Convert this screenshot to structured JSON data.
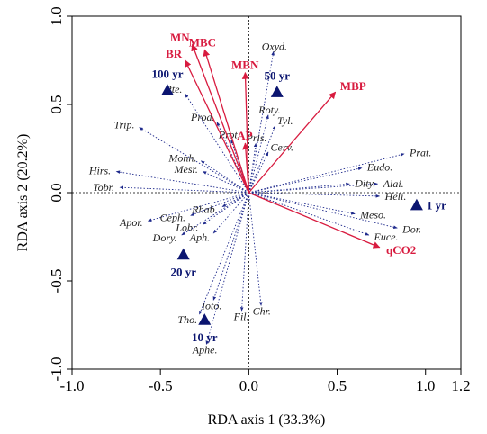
{
  "chart_data": {
    "type": "scatter",
    "xlabel": "RDA axis 1 (33.3%)",
    "ylabel": "RDA axis 2 (20.2%)",
    "xlim": [
      -1.0,
      1.2
    ],
    "ylim": [
      -1.0,
      1.0
    ],
    "xticks": [
      -1.0,
      -0.5,
      0.0,
      0.5,
      1.0,
      1.2
    ],
    "xtick_labels": [
      "-1.0",
      "-0.5",
      "0.0",
      "0.5",
      "1.0",
      "1.2"
    ],
    "yticks": [
      -1.0,
      -0.5,
      0.0,
      0.5,
      1.0
    ],
    "ytick_labels": [
      "-1.0",
      "-0.5",
      "0.0",
      "0.5",
      "1.0"
    ],
    "zero_lines": true,
    "species": [
      {
        "label": "Oxyd.",
        "x": 0.14,
        "y": 0.8
      },
      {
        "label": "Roty.",
        "x": 0.11,
        "y": 0.44
      },
      {
        "label": "Tyl.",
        "x": 0.15,
        "y": 0.38
      },
      {
        "label": "Pte.",
        "x": -0.36,
        "y": 0.56
      },
      {
        "label": "Prod.",
        "x": -0.18,
        "y": 0.4
      },
      {
        "label": "Trip.",
        "x": -0.62,
        "y": 0.37
      },
      {
        "label": "Prot.",
        "x": -0.1,
        "y": 0.3
      },
      {
        "label": "Pris.",
        "x": 0.04,
        "y": 0.28
      },
      {
        "label": "Cerv.",
        "x": 0.11,
        "y": 0.23
      },
      {
        "label": "Prat.",
        "x": 0.88,
        "y": 0.22
      },
      {
        "label": "Monh.",
        "x": -0.27,
        "y": 0.18
      },
      {
        "label": "Mesr.",
        "x": -0.26,
        "y": 0.12
      },
      {
        "label": "Eudo.",
        "x": 0.64,
        "y": 0.14
      },
      {
        "label": "Hirs.",
        "x": -0.75,
        "y": 0.12
      },
      {
        "label": "Alai.",
        "x": 0.73,
        "y": 0.05
      },
      {
        "label": "Dity.",
        "x": 0.57,
        "y": 0.05
      },
      {
        "label": "Tobr.",
        "x": -0.73,
        "y": 0.03
      },
      {
        "label": "Heli.",
        "x": 0.74,
        "y": -0.02
      },
      {
        "label": "Rhab.",
        "x": -0.15,
        "y": -0.08
      },
      {
        "label": "Ceph.",
        "x": -0.33,
        "y": -0.13
      },
      {
        "label": "Meso.",
        "x": 0.6,
        "y": -0.12
      },
      {
        "label": "Apor.",
        "x": -0.57,
        "y": -0.16
      },
      {
        "label": "Lobr.",
        "x": -0.26,
        "y": -0.18
      },
      {
        "label": "Dor.",
        "x": 0.84,
        "y": -0.2
      },
      {
        "label": "Aph.",
        "x": -0.2,
        "y": -0.23
      },
      {
        "label": "Euce.",
        "x": 0.68,
        "y": -0.24
      },
      {
        "label": "Dory.",
        "x": -0.38,
        "y": -0.24
      },
      {
        "label": "Ioto.",
        "x": -0.2,
        "y": -0.61
      },
      {
        "label": "Chr.",
        "x": 0.07,
        "y": -0.64
      },
      {
        "label": "Fil.",
        "x": -0.04,
        "y": -0.67
      },
      {
        "label": "Tho.",
        "x": -0.28,
        "y": -0.69
      },
      {
        "label": "Aphe.",
        "x": -0.24,
        "y": -0.86
      }
    ],
    "environmental_variables": [
      {
        "label": "MN",
        "x": -0.32,
        "y": 0.84
      },
      {
        "label": "MBC",
        "x": -0.25,
        "y": 0.81
      },
      {
        "label": "BR",
        "x": -0.36,
        "y": 0.75
      },
      {
        "label": "MBN",
        "x": -0.02,
        "y": 0.68
      },
      {
        "label": "MBP",
        "x": 0.49,
        "y": 0.57
      },
      {
        "label": "AP",
        "x": -0.02,
        "y": 0.28
      },
      {
        "label": "qCO2",
        "x": 0.74,
        "y": -0.31
      }
    ],
    "sites": [
      {
        "label": "100 yr",
        "x": -0.46,
        "y": 0.58
      },
      {
        "label": "50 yr",
        "x": 0.16,
        "y": 0.57
      },
      {
        "label": "1 yr",
        "x": 0.95,
        "y": -0.07
      },
      {
        "label": "20 yr",
        "x": -0.37,
        "y": -0.35
      },
      {
        "label": "10 yr",
        "x": -0.25,
        "y": -0.72
      }
    ],
    "colors": {
      "species_arrows": "#1f2a8c",
      "env_arrows": "#d81b3f",
      "sites": "#0b1570",
      "axes": "#000000"
    }
  }
}
